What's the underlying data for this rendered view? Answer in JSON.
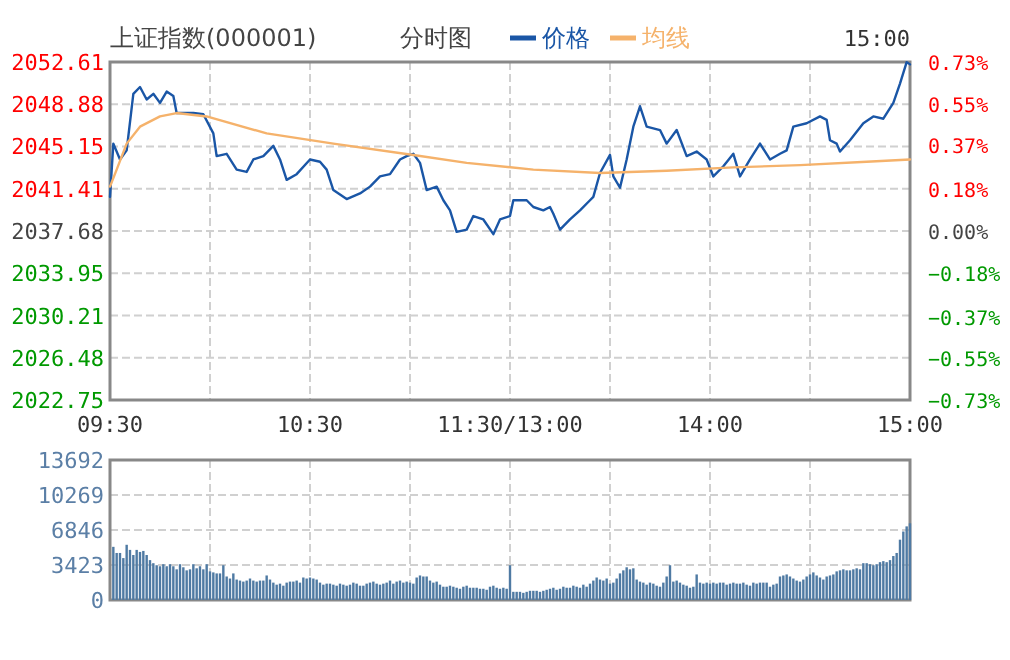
{
  "chart_data": [
    {
      "type": "line",
      "title": "上证指数(000001)",
      "subtitle": "分时图",
      "annotations": [
        "15:00"
      ],
      "legend": "top",
      "grid": true,
      "categories": [
        "09:30",
        null,
        null,
        null,
        null,
        null,
        null,
        null,
        null,
        null,
        null,
        null,
        null,
        null,
        null,
        null,
        null,
        null,
        null,
        null,
        null,
        null,
        null,
        null,
        null,
        null,
        null,
        null,
        null,
        null,
        null,
        null,
        null,
        null,
        null,
        null,
        null,
        null,
        null,
        null,
        null,
        null,
        null,
        null,
        null,
        null,
        null,
        null,
        null,
        null,
        null,
        null,
        null,
        null,
        null,
        null,
        null,
        null,
        null,
        null,
        "10:30",
        null,
        null,
        null,
        null,
        null,
        null,
        null,
        null,
        null,
        null,
        null,
        null,
        null,
        null,
        null,
        null,
        null,
        null,
        null,
        null,
        null,
        null,
        null,
        null,
        null,
        null,
        null,
        null,
        null,
        null,
        null,
        null,
        null,
        null,
        null,
        null,
        null,
        null,
        null,
        null,
        null,
        null,
        null,
        null,
        null,
        null,
        null,
        null,
        null,
        null,
        null,
        null,
        null,
        null,
        null,
        null,
        null,
        null,
        null,
        "11:30/13:00",
        null,
        null,
        null,
        null,
        null,
        null,
        null,
        null,
        null,
        null,
        null,
        null,
        null,
        null,
        null,
        null,
        null,
        null,
        null,
        null,
        null,
        null,
        null,
        null,
        null,
        null,
        null,
        null,
        null,
        null,
        null,
        null,
        null,
        null,
        null,
        null,
        null,
        null,
        null,
        null,
        null,
        null,
        null,
        null,
        null,
        null,
        null,
        null,
        null,
        null,
        null,
        null,
        null,
        null,
        null,
        null,
        null,
        null,
        null,
        "14:00",
        null,
        null,
        null,
        null,
        null,
        null,
        null,
        null,
        null,
        null,
        null,
        null,
        null,
        null,
        null,
        null,
        null,
        null,
        null,
        null,
        null,
        null,
        null,
        null,
        null,
        null,
        null,
        null,
        null,
        null,
        null,
        null,
        null,
        null,
        null,
        null,
        null,
        null,
        null,
        null,
        null,
        null,
        null,
        null,
        null,
        null,
        null,
        null,
        null,
        null,
        null,
        null,
        null,
        null,
        null,
        null,
        null,
        null,
        null,
        "15:00"
      ],
      "ylim": [
        2022.75,
        2052.61
      ],
      "yticks": [
        2022.75,
        2026.48,
        2030.21,
        2033.95,
        2037.68,
        2041.41,
        2045.15,
        2048.88,
        2052.61
      ],
      "y2lim": [
        -0.73,
        0.73
      ],
      "y2ticks": [
        {
          "value": -0.73,
          "label": "−0.73%"
        },
        {
          "value": -0.55,
          "label": "−0.55%"
        },
        {
          "value": -0.37,
          "label": "−0.37%"
        },
        {
          "value": -0.18,
          "label": "−0.18%"
        },
        {
          "value": 0,
          "label": "0.00%"
        },
        {
          "value": 0.18,
          "label": "0.18%"
        },
        {
          "value": 0.37,
          "label": "0.37%"
        },
        {
          "value": 0.55,
          "label": "0.55%"
        },
        {
          "value": 0.73,
          "label": "0.73%"
        }
      ],
      "series": [
        {
          "name": "价格",
          "color": "#1a56a6",
          "values": [
            2040.7,
            2045.4,
            null,
            2044.0,
            null,
            2044.8,
            null,
            2049.8,
            null,
            2050.4,
            null,
            2049.3,
            null,
            2049.8,
            null,
            2049.0,
            null,
            2050.0,
            null,
            2049.6,
            2048.1,
            null,
            null,
            null,
            null,
            2048.1,
            null,
            null,
            2048.0,
            null,
            null,
            2046.3,
            2044.3,
            null,
            null,
            2044.5,
            null,
            null,
            2043.1,
            null,
            null,
            2042.9,
            null,
            2044.0,
            null,
            null,
            2044.3,
            null,
            null,
            2045.2,
            null,
            2044.0,
            null,
            2042.2,
            null,
            null,
            2042.7,
            null,
            null,
            null,
            2044.0,
            null,
            null,
            2043.8,
            null,
            2043.1,
            null,
            2041.3,
            null,
            null,
            null,
            2040.5,
            null,
            null,
            null,
            2041.0,
            null,
            null,
            2041.6,
            null,
            null,
            2042.5,
            null,
            null,
            2042.7,
            null,
            null,
            2044.0,
            null,
            2044.3,
            null,
            2044.5,
            null,
            2043.7,
            null,
            2041.3,
            null,
            null,
            2041.6,
            null,
            2040.4,
            null,
            2039.5,
            null,
            2037.6,
            null,
            null,
            2037.8,
            null,
            2039.0,
            null,
            null,
            2038.7,
            null,
            null,
            2037.4,
            null,
            2038.7,
            null,
            null,
            2039.0,
            2040.4,
            null,
            null,
            null,
            2040.4,
            null,
            2039.8,
            null,
            null,
            2039.5,
            null,
            2039.8,
            2039.2,
            null,
            2037.8,
            null,
            null,
            2038.7,
            null,
            null,
            2039.5,
            null,
            null,
            2040.4,
            2040.7,
            null,
            2042.8,
            null,
            null,
            2044.4,
            2042.5,
            null,
            2041.5,
            null,
            2044.0,
            null,
            2046.9,
            null,
            2048.7,
            null,
            2046.9,
            null,
            null,
            null,
            2046.6,
            null,
            2045.4,
            null,
            null,
            2046.6,
            null,
            null,
            2044.3,
            null,
            null,
            2044.7,
            null,
            null,
            2044.0,
            null,
            2042.5,
            null,
            null,
            2043.4,
            null,
            null,
            2044.5,
            null,
            2042.5,
            null,
            null,
            2044.0,
            null,
            null,
            2045.4,
            null,
            null,
            2044.0,
            null,
            null,
            2044.5,
            null,
            2044.8,
            null,
            2046.9,
            null,
            null,
            null,
            2047.2,
            null,
            null,
            null,
            2047.8,
            null,
            2047.5,
            2045.7,
            null,
            2045.4,
            2044.7,
            null,
            null,
            2045.7,
            null,
            null,
            null,
            2047.2,
            null,
            null,
            2047.8,
            null,
            null,
            2047.6,
            null,
            null,
            2049.0,
            null,
            2050.7,
            null,
            2052.6,
            2052.4
          ]
        },
        {
          "name": "均线",
          "color": "#f5b26b",
          "values": [
            2041.6,
            null,
            2043.1,
            null,
            null,
            2045.4,
            null,
            null,
            null,
            2046.9,
            null,
            null,
            null,
            null,
            null,
            2047.8,
            null,
            null,
            null,
            null,
            2048.1,
            null,
            null,
            null,
            null,
            null,
            null,
            null,
            null,
            2047.8,
            null,
            null,
            null,
            null,
            null,
            null,
            null,
            null,
            null,
            null,
            null,
            null,
            null,
            null,
            null,
            null,
            null,
            2046.3,
            null,
            null,
            null,
            null,
            null,
            null,
            null,
            null,
            null,
            null,
            null,
            null,
            null,
            null,
            null,
            null,
            null,
            null,
            null,
            2045.4,
            null,
            null,
            null,
            null,
            null,
            null,
            null,
            null,
            null,
            null,
            null,
            null,
            null,
            null,
            null,
            null,
            null,
            null,
            null,
            null,
            null,
            null,
            null,
            2044.4,
            null,
            null,
            null,
            null,
            null,
            null,
            null,
            null,
            null,
            null,
            null,
            null,
            null,
            null,
            null,
            2043.7,
            null,
            null,
            null,
            null,
            null,
            null,
            null,
            null,
            null,
            null,
            null,
            null,
            null,
            null,
            null,
            null,
            null,
            null,
            null,
            2043.1,
            null,
            null,
            null,
            null,
            null,
            null,
            null,
            null,
            null,
            null,
            null,
            null,
            null,
            null,
            null,
            null,
            null,
            null,
            null,
            2042.8,
            null,
            null,
            null,
            null,
            null,
            null,
            null,
            null,
            null,
            null,
            null,
            null,
            null,
            null,
            null,
            null,
            null,
            null,
            null,
            2043.0,
            null,
            null,
            null,
            null,
            null,
            null,
            null,
            null,
            null,
            null,
            null,
            null,
            null,
            null,
            null,
            null,
            null,
            null,
            null,
            2043.3,
            null,
            null,
            null,
            null,
            null,
            null,
            null,
            null,
            null,
            null,
            null,
            null,
            null,
            null,
            null,
            null,
            null,
            null,
            null,
            2043.5,
            null,
            null,
            null,
            null,
            null,
            null,
            null,
            null,
            null,
            null,
            null,
            null,
            null,
            null,
            null,
            null,
            null,
            null,
            null,
            2043.8,
            null,
            null,
            null,
            null,
            null,
            null,
            null,
            null,
            null,
            null,
            null,
            null,
            2044.0
          ]
        }
      ]
    },
    {
      "type": "bar",
      "grid": true,
      "categories": [
        null,
        null,
        null,
        null,
        null,
        null,
        null,
        null,
        null,
        null,
        null,
        null,
        null,
        null,
        null,
        null,
        null,
        null,
        null,
        null,
        null,
        null,
        null,
        null,
        null,
        null,
        null,
        null,
        null,
        null,
        null,
        null,
        null,
        null,
        null,
        null,
        null,
        null,
        null,
        null,
        null,
        null,
        null,
        null,
        null,
        null,
        null,
        null,
        null,
        null,
        null,
        null,
        null,
        null,
        null,
        null,
        null,
        null,
        null,
        null,
        null,
        null,
        null,
        null,
        null,
        null,
        null,
        null,
        null,
        null,
        null,
        null,
        null,
        null,
        null,
        null,
        null,
        null,
        null,
        null,
        null,
        null,
        null,
        null,
        null,
        null,
        null,
        null,
        null,
        null,
        null,
        null,
        null,
        null,
        null,
        null,
        null,
        null,
        null,
        null,
        null,
        null,
        null,
        null,
        null,
        null,
        null,
        null,
        null,
        null,
        null,
        null,
        null,
        null,
        null,
        null,
        null,
        null,
        null,
        null,
        null,
        null,
        null,
        null,
        null,
        null,
        null,
        null,
        null,
        null,
        null,
        null,
        null,
        null,
        null,
        null,
        null,
        null,
        null,
        null,
        null,
        null,
        null,
        null,
        null,
        null,
        null,
        null,
        null,
        null,
        null,
        null,
        null,
        null,
        null,
        null,
        null,
        null,
        null,
        null,
        null,
        null,
        null,
        null,
        null,
        null,
        null,
        null,
        null,
        null,
        null,
        null,
        null,
        null,
        null,
        null,
        null,
        null,
        null,
        null,
        null,
        null,
        null,
        null,
        null,
        null,
        null,
        null,
        null,
        null,
        null,
        null,
        null,
        null,
        null,
        null,
        null,
        null,
        null,
        null,
        null,
        null,
        null,
        null,
        null,
        null,
        null,
        null,
        null,
        null,
        null,
        null,
        null,
        null,
        null,
        null,
        null,
        null,
        null,
        null,
        null,
        null,
        null,
        null,
        null,
        null,
        null,
        null,
        null,
        null,
        null,
        null,
        null,
        null,
        null,
        null,
        null,
        null,
        null,
        null,
        null
      ],
      "ylim": [
        0,
        13692
      ],
      "yticks": [
        0,
        3423,
        6846,
        10269,
        13692
      ],
      "series": [
        {
          "color": "#4f7aa3",
          "values": [
            null,
            5200,
            4600,
            4600,
            4100,
            5400,
            4900,
            4400,
            4900,
            4700,
            4800,
            4400,
            3900,
            3600,
            3400,
            3300,
            3500,
            3300,
            3500,
            3300,
            3000,
            3500,
            3200,
            2900,
            3000,
            3500,
            3100,
            3300,
            3000,
            3500,
            2800,
            2700,
            2600,
            2600,
            3400,
            2300,
            2100,
            2600,
            2000,
            1900,
            1800,
            1900,
            2100,
            1900,
            1800,
            1900,
            1900,
            2400,
            2000,
            1700,
            1500,
            1600,
            1400,
            1700,
            1800,
            1800,
            1900,
            1700,
            2200,
            2100,
            2200,
            2100,
            2000,
            1700,
            1500,
            1600,
            1600,
            1500,
            1400,
            1600,
            1500,
            1400,
            1500,
            1700,
            1600,
            1400,
            1400,
            1600,
            1700,
            1800,
            1600,
            1500,
            1600,
            1700,
            1900,
            1600,
            1800,
            1900,
            1700,
            1800,
            1700,
            1600,
            2200,
            2400,
            2300,
            2300,
            1900,
            1700,
            1800,
            1500,
            1300,
            1300,
            1400,
            1300,
            1200,
            1100,
            1300,
            1400,
            1200,
            1200,
            1200,
            1100,
            1100,
            1000,
            1300,
            1400,
            1200,
            1100,
            1200,
            1100,
            3400,
            800,
            800,
            800,
            700,
            800,
            900,
            900,
            900,
            800,
            900,
            1000,
            1100,
            1200,
            1000,
            1100,
            1300,
            1200,
            1200,
            1400,
            1300,
            1200,
            1500,
            1300,
            1600,
            1900,
            2200,
            2000,
            1900,
            2100,
            1600,
            1700,
            2100,
            2600,
            2900,
            3200,
            3000,
            3100,
            2000,
            1800,
            1700,
            1500,
            1700,
            1600,
            1400,
            1300,
            1700,
            2300,
            3400,
            1800,
            1900,
            1700,
            1500,
            1400,
            1200,
            1300,
            2500,
            1700,
            1600,
            1700,
            1600,
            1700,
            1600,
            1700,
            1700,
            1500,
            1600,
            1700,
            1600,
            1600,
            1700,
            1500,
            1400,
            1700,
            1600,
            1700,
            1700,
            1700,
            1300,
            1500,
            1600,
            2300,
            2400,
            2500,
            2300,
            2100,
            1900,
            1800,
            2000,
            2300,
            2500,
            2700,
            2400,
            2200,
            2000,
            2300,
            2400,
            2500,
            2800,
            2900,
            3000,
            2900,
            2900,
            3000,
            3100,
            3000,
            3600,
            3600,
            3500,
            3400,
            3500,
            3700,
            3800,
            3700,
            3900,
            4300,
            4600,
            5900,
            6700,
            7200,
            7500
          ]
        }
      ]
    }
  ]
}
